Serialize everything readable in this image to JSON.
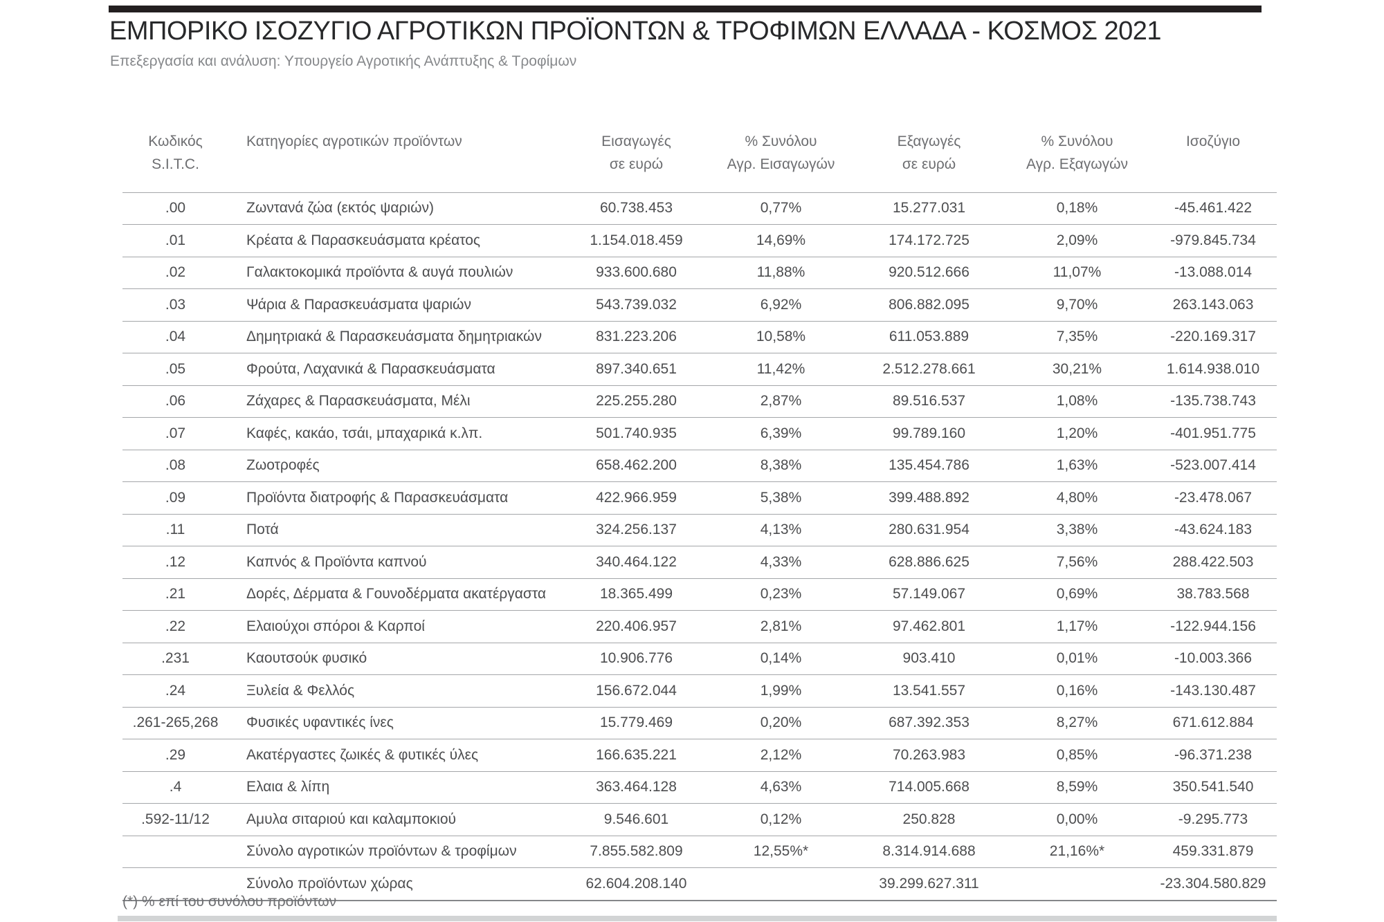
{
  "header": {
    "title": "ΕΜΠΟΡΙΚΟ ΙΣΟΖΥΓΙΟ ΑΓΡΟΤΙΚΩΝ ΠΡΟΪΟΝΤΩΝ & ΤΡΟΦΙΜΩΝ ΕΛΛΑΔΑ - ΚΟΣΜΟΣ 2021",
    "subtitle": "Επεξεργασία και ανάλυση: Υπουργείο Αγροτικής Ανάπτυξης & Τροφίμων"
  },
  "table": {
    "columns": [
      {
        "line1": "Κωδικός S.I.T.C.",
        "line2": ""
      },
      {
        "line1": "Κατηγορίες αγροτικών προϊόντων",
        "line2": ""
      },
      {
        "line1": "Εισαγωγές",
        "line2": "σε ευρώ"
      },
      {
        "line1": "% Συνόλου",
        "line2": "Αγρ. Εισαγωγών"
      },
      {
        "line1": "Εξαγωγές",
        "line2": "σε ευρώ"
      },
      {
        "line1": "% Συνόλου",
        "line2": "Αγρ. Εξαγωγών"
      },
      {
        "line1": "Ισοζύγιο",
        "line2": ""
      }
    ],
    "rows": [
      [
        ".00",
        "Ζωντανά ζώα (εκτός ψαριών)",
        "60.738.453",
        "0,77%",
        "15.277.031",
        "0,18%",
        "-45.461.422"
      ],
      [
        ".01",
        "Κρέατα & Παρασκευάσματα κρέατος",
        "1.154.018.459",
        "14,69%",
        "174.172.725",
        "2,09%",
        "-979.845.734"
      ],
      [
        ".02",
        "Γαλακτοκομικά προϊόντα & αυγά πουλιών",
        "933.600.680",
        "11,88%",
        "920.512.666",
        "11,07%",
        "-13.088.014"
      ],
      [
        ".03",
        "Ψάρια & Παρασκευάσματα ψαριών",
        "543.739.032",
        "6,92%",
        "806.882.095",
        "9,70%",
        "263.143.063"
      ],
      [
        ".04",
        "Δημητριακά & Παρασκευάσματα δημητριακών",
        "831.223.206",
        "10,58%",
        "611.053.889",
        "7,35%",
        "-220.169.317"
      ],
      [
        ".05",
        "Φρούτα, Λαχανικά & Παρασκευάσματα",
        "897.340.651",
        "11,42%",
        "2.512.278.661",
        "30,21%",
        "1.614.938.010"
      ],
      [
        ".06",
        "Ζάχαρες & Παρασκευάσματα, Μέλι",
        "225.255.280",
        "2,87%",
        "89.516.537",
        "1,08%",
        "-135.738.743"
      ],
      [
        ".07",
        "Καφές, κακάο, τσάι, μπαχαρικά κ.λπ.",
        "501.740.935",
        "6,39%",
        "99.789.160",
        "1,20%",
        "-401.951.775"
      ],
      [
        ".08",
        "Ζωοτροφές",
        "658.462.200",
        "8,38%",
        "135.454.786",
        "1,63%",
        "-523.007.414"
      ],
      [
        ".09",
        "Προϊόντα διατροφής & Παρασκευάσματα",
        "422.966.959",
        "5,38%",
        "399.488.892",
        "4,80%",
        "-23.478.067"
      ],
      [
        ".11",
        "Ποτά",
        "324.256.137",
        "4,13%",
        "280.631.954",
        "3,38%",
        "-43.624.183"
      ],
      [
        ".12",
        "Καπνός & Προϊόντα καπνού",
        "340.464.122",
        "4,33%",
        "628.886.625",
        "7,56%",
        "288.422.503"
      ],
      [
        ".21",
        "Δορές, Δέρματα & Γουνοδέρματα ακατέργαστα",
        "18.365.499",
        "0,23%",
        "57.149.067",
        "0,69%",
        "38.783.568"
      ],
      [
        ".22",
        "Ελαιούχοι σπόροι & Καρποί",
        "220.406.957",
        "2,81%",
        "97.462.801",
        "1,17%",
        "-122.944.156"
      ],
      [
        ".231",
        "Καουτσούκ φυσικό",
        "10.906.776",
        "0,14%",
        "903.410",
        "0,01%",
        "-10.003.366"
      ],
      [
        ".24",
        "Ξυλεία & Φελλός",
        "156.672.044",
        "1,99%",
        "13.541.557",
        "0,16%",
        "-143.130.487"
      ],
      [
        ".261-265,268",
        "Φυσικές υφαντικές ίνες",
        "15.779.469",
        "0,20%",
        "687.392.353",
        "8,27%",
        "671.612.884"
      ],
      [
        ".29",
        "Ακατέργαστες ζωικές & φυτικές ύλες",
        "166.635.221",
        "2,12%",
        "70.263.983",
        "0,85%",
        "-96.371.238"
      ],
      [
        ".4",
        "Ελαια & λίπη",
        "363.464.128",
        "4,63%",
        "714.005.668",
        "8,59%",
        "350.541.540"
      ],
      [
        ".592-11/12",
        "Αμυλα σιταριού και καλαμποκιού",
        "9.546.601",
        "0,12%",
        "250.828",
        "0,00%",
        "-9.295.773"
      ]
    ],
    "total_rows": [
      [
        "",
        "Σύνολο αγροτικών προϊόντων & τροφίμων",
        "7.855.582.809",
        "12,55%*",
        "8.314.914.688",
        "21,16%*",
        "459.331.879"
      ],
      [
        "",
        "Σύνολο προϊόντων χώρας",
        "62.604.208.140",
        "",
        "39.299.627.311",
        "",
        "-23.304.580.829"
      ]
    ]
  },
  "footnote": "(*) % επί του συνόλου προϊόντων"
}
